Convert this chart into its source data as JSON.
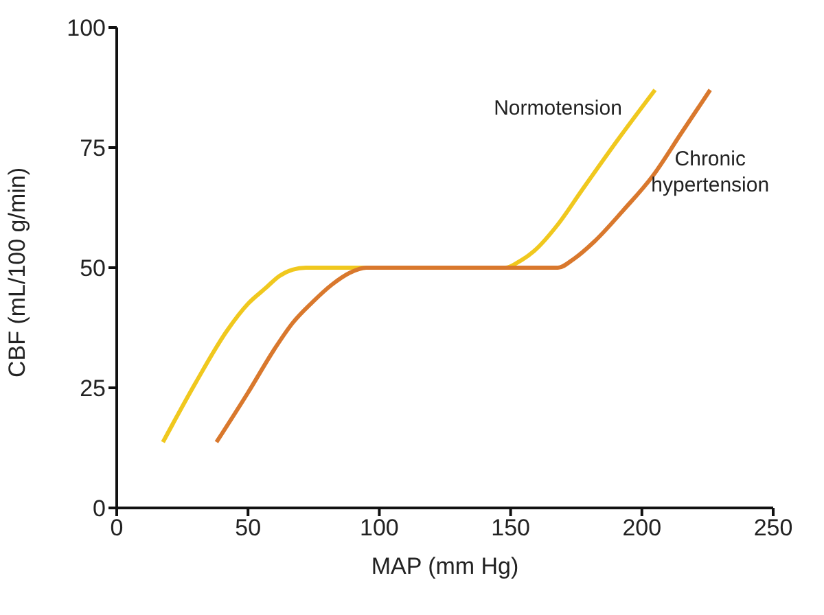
{
  "chart_data": {
    "type": "line",
    "xlabel": "MAP (mm Hg)",
    "ylabel": "CBF (mL/100 g/min)",
    "xlim": [
      0,
      250
    ],
    "xticks": [
      0,
      50,
      100,
      150,
      200,
      250
    ],
    "ylim": [
      0,
      100
    ],
    "yticks": [
      0,
      25,
      50,
      75,
      100
    ],
    "grid": false,
    "legend": false,
    "marker": "none",
    "line_style": "solid",
    "series": [
      {
        "name": "Normotension",
        "color": "#f0c81e",
        "x": [
          17.6,
          30,
          42,
          50,
          56.6,
          62,
          67,
          72,
          100,
          130,
          148,
          153,
          159,
          168,
          177,
          190,
          205
        ],
        "values": [
          13.7,
          26,
          36.9,
          42.5,
          45.7,
          48.3,
          49.6,
          50,
          50,
          50,
          50,
          51.2,
          53.5,
          59,
          66,
          76,
          87
        ]
      },
      {
        "name": "Chronic hypertension",
        "color": "#d9782d",
        "x": [
          38,
          50,
          60,
          67,
          74.5,
          82,
          89,
          95,
          120,
          150,
          168,
          174,
          182,
          193,
          204,
          215,
          226
        ],
        "values": [
          13.7,
          24,
          33,
          38.5,
          42.8,
          46.5,
          49,
          50,
          50,
          50,
          50,
          51.8,
          55.5,
          62,
          69,
          78,
          87
        ]
      }
    ]
  }
}
